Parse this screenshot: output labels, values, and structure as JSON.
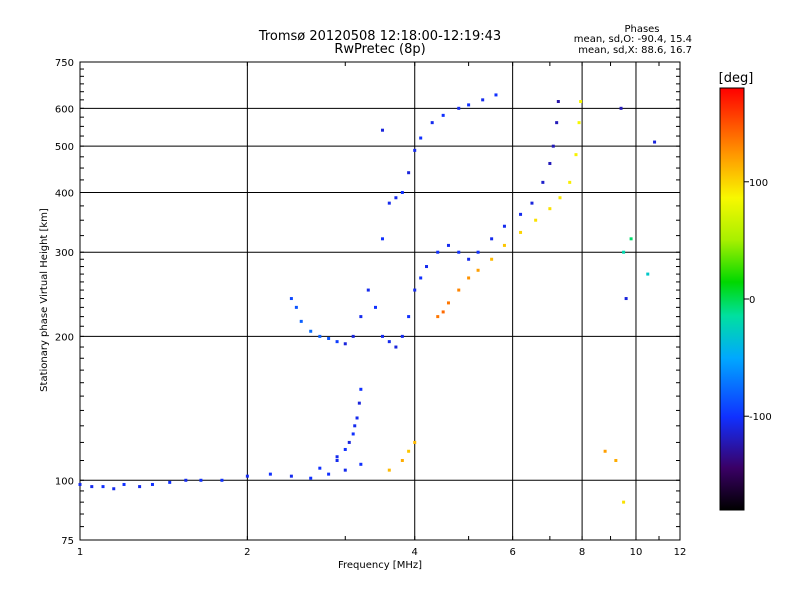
{
  "chart_data": {
    "type": "scatter",
    "title": "Tromsø 20120508 12:18:00-12:19:43",
    "subtitle": "RwPretec (8p)",
    "xlabel": "Frequency [MHz]",
    "ylabel": "Stationary phase Virtual Height [km]",
    "x_scale": "log",
    "y_scale": "log",
    "xlim": [
      1,
      12
    ],
    "ylim": [
      75,
      750
    ],
    "x_ticks": [
      1,
      2,
      4,
      6,
      8,
      10,
      12
    ],
    "x_tick_labels": [
      "1",
      "2",
      "4",
      "6",
      "8",
      "10",
      "12"
    ],
    "y_ticks": [
      75,
      100,
      200,
      300,
      400,
      500,
      600,
      750
    ],
    "y_tick_labels": [
      "75",
      "100",
      "200",
      "300",
      "400",
      "500",
      "600",
      "750"
    ],
    "grid": true,
    "phase_stats": {
      "heading": "Phases",
      "line_o": "mean, sd,O: -90.4, 15.4",
      "line_x": "mean, sd,X:  88.6, 16.7"
    },
    "colorbar": {
      "label": "[deg]",
      "range": [
        -180,
        180
      ],
      "ticks": [
        100,
        0,
        -100
      ],
      "tick_labels": [
        "100",
        "0",
        "-100"
      ]
    },
    "series": [
      {
        "points": [
          [
            1.0,
            98,
            -105
          ],
          [
            1.05,
            97,
            -105
          ],
          [
            1.1,
            97,
            -100
          ],
          [
            1.15,
            96,
            -105
          ],
          [
            1.2,
            98,
            -100
          ],
          [
            1.28,
            97,
            -105
          ],
          [
            1.35,
            98,
            -100
          ],
          [
            1.45,
            99,
            -100
          ],
          [
            1.55,
            100,
            -105
          ],
          [
            1.65,
            100,
            -100
          ],
          [
            1.8,
            100,
            -100
          ],
          [
            2.0,
            102,
            -105
          ],
          [
            2.2,
            103,
            -100
          ],
          [
            2.4,
            102,
            -105
          ],
          [
            2.6,
            101,
            -100
          ],
          [
            2.8,
            103,
            -100
          ],
          [
            3.0,
            105,
            -105
          ],
          [
            3.2,
            108,
            -100
          ],
          [
            2.7,
            106,
            -100
          ],
          [
            2.9,
            110,
            -105
          ]
        ]
      },
      {
        "points": [
          [
            2.9,
            112,
            -105
          ],
          [
            3.0,
            116,
            -100
          ],
          [
            3.05,
            120,
            -110
          ],
          [
            3.1,
            125,
            -100
          ],
          [
            3.15,
            135,
            -105
          ],
          [
            3.18,
            145,
            -110
          ],
          [
            3.2,
            155,
            -100
          ],
          [
            3.12,
            130,
            -105
          ]
        ]
      },
      {
        "points": [
          [
            2.4,
            240,
            -90
          ],
          [
            2.45,
            230,
            -85
          ],
          [
            2.5,
            215,
            -80
          ],
          [
            2.6,
            205,
            -75
          ],
          [
            2.7,
            200,
            -80
          ],
          [
            2.8,
            198,
            -85
          ],
          [
            2.9,
            195,
            -95
          ],
          [
            3.0,
            193,
            -110
          ],
          [
            3.1,
            200,
            -110
          ],
          [
            3.2,
            220,
            -105
          ],
          [
            3.3,
            250,
            -105
          ],
          [
            3.4,
            230,
            -100
          ],
          [
            3.5,
            200,
            -105
          ],
          [
            3.6,
            195,
            -105
          ],
          [
            3.7,
            190,
            -110
          ],
          [
            3.8,
            200,
            -105
          ],
          [
            3.9,
            220,
            -100
          ],
          [
            4.0,
            250,
            -105
          ],
          [
            4.1,
            265,
            -100
          ],
          [
            4.2,
            280,
            -105
          ],
          [
            4.4,
            300,
            -100
          ],
          [
            4.6,
            310,
            -105
          ],
          [
            4.8,
            300,
            -100
          ],
          [
            5.0,
            290,
            -105
          ],
          [
            5.2,
            300,
            -100
          ],
          [
            5.5,
            320,
            -105
          ],
          [
            5.8,
            340,
            -105
          ],
          [
            6.2,
            360,
            -105
          ],
          [
            6.5,
            380,
            -110
          ],
          [
            6.8,
            420,
            -115
          ],
          [
            7.0,
            460,
            -120
          ],
          [
            7.1,
            500,
            -120
          ],
          [
            7.2,
            560,
            -120
          ],
          [
            7.25,
            620,
            -125
          ]
        ]
      },
      {
        "points": [
          [
            3.5,
            320,
            -100
          ],
          [
            3.6,
            380,
            -105
          ],
          [
            3.7,
            390,
            -105
          ],
          [
            3.8,
            400,
            -100
          ],
          [
            3.9,
            440,
            -110
          ],
          [
            4.0,
            490,
            -105
          ],
          [
            4.1,
            520,
            -100
          ],
          [
            4.3,
            560,
            -105
          ],
          [
            4.5,
            580,
            -100
          ],
          [
            4.8,
            600,
            -105
          ],
          [
            5.0,
            610,
            -100
          ],
          [
            5.3,
            625,
            -105
          ],
          [
            5.6,
            640,
            -100
          ],
          [
            3.5,
            540,
            -110
          ]
        ]
      },
      {
        "points": [
          [
            4.4,
            220,
            135
          ],
          [
            4.5,
            225,
            140
          ],
          [
            4.6,
            235,
            135
          ],
          [
            4.8,
            250,
            130
          ],
          [
            5.0,
            265,
            125
          ],
          [
            5.2,
            275,
            120
          ],
          [
            5.5,
            290,
            110
          ],
          [
            5.8,
            310,
            105
          ],
          [
            6.2,
            330,
            100
          ],
          [
            6.6,
            350,
            95
          ],
          [
            7.0,
            370,
            95
          ],
          [
            7.3,
            390,
            92
          ],
          [
            7.6,
            420,
            90
          ],
          [
            7.8,
            480,
            88
          ],
          [
            7.9,
            560,
            85
          ],
          [
            7.95,
            620,
            85
          ]
        ]
      },
      {
        "points": [
          [
            3.6,
            105,
            110
          ],
          [
            3.8,
            110,
            115
          ],
          [
            3.9,
            115,
            105
          ],
          [
            4.0,
            120,
            110
          ],
          [
            8.8,
            115,
            120
          ],
          [
            9.2,
            110,
            115
          ],
          [
            9.5,
            90,
            95
          ]
        ]
      },
      {
        "points": [
          [
            9.5,
            300,
            -20
          ],
          [
            9.8,
            320,
            -10
          ],
          [
            10.5,
            270,
            -30
          ],
          [
            9.4,
            600,
            -120
          ],
          [
            10.8,
            510,
            -110
          ],
          [
            9.6,
            240,
            -110
          ]
        ]
      }
    ]
  }
}
